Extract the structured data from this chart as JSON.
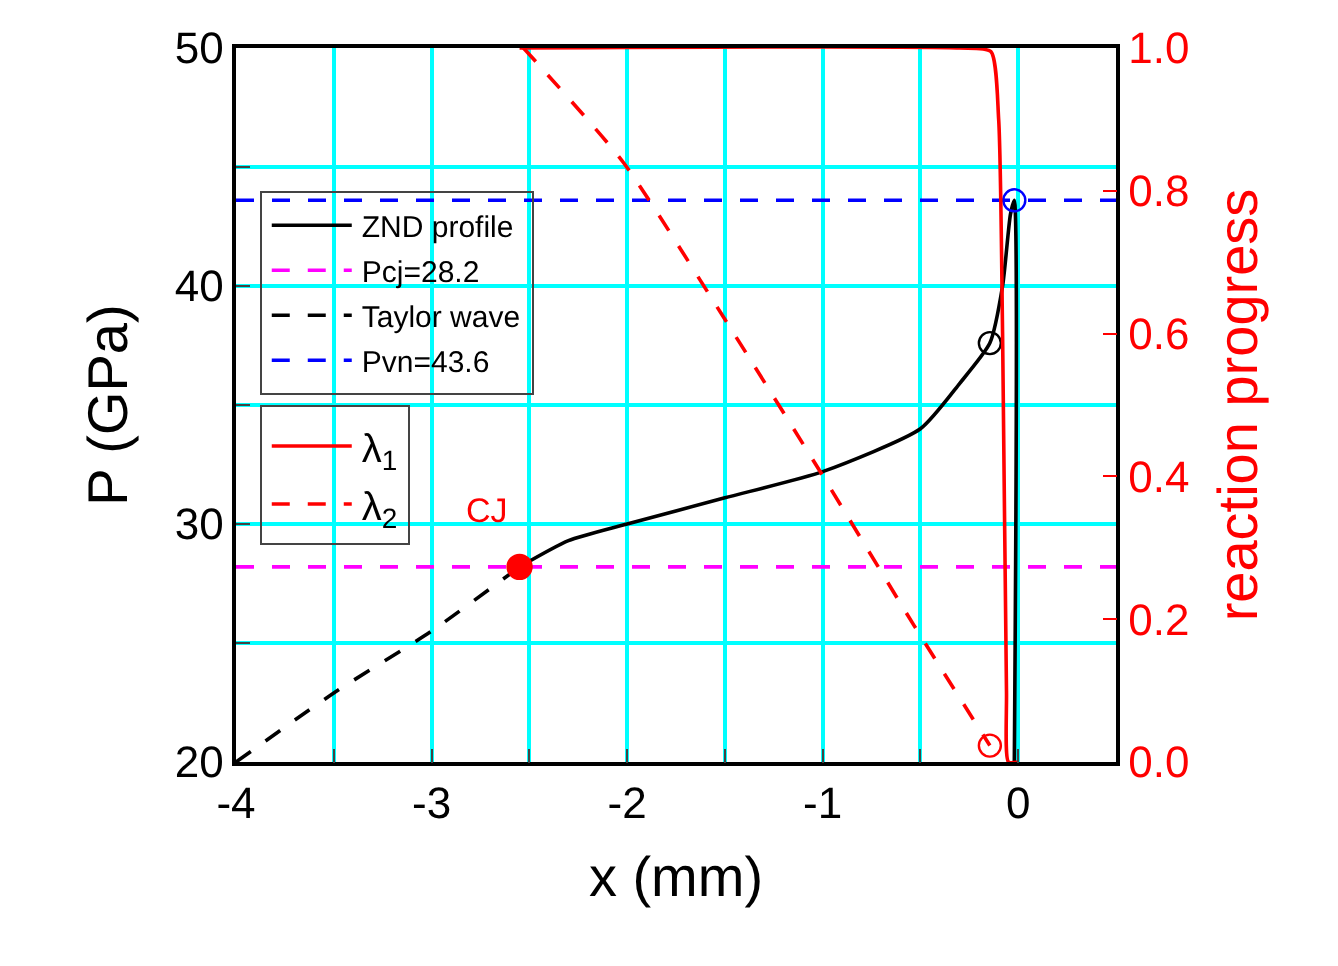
{
  "chart_data": {
    "type": "line",
    "xlabel": "x (mm)",
    "ylabel": "P (GPa)",
    "y2label": "reaction progress",
    "xlim": [
      -4,
      0.5
    ],
    "xticks": [
      -4,
      {
        "value": -3.5,
        "label": null
      },
      -3,
      {
        "value": -2.5,
        "label": null
      },
      -2,
      {
        "value": -1.5,
        "label": null
      },
      -1,
      {
        "value": -0.5,
        "label": null
      },
      0,
      {
        "value": 0.5,
        "label": null
      }
    ],
    "ylim": [
      20,
      50
    ],
    "yticks": [
      20,
      {
        "value": 25,
        "label": null
      },
      30,
      {
        "value": 35,
        "label": null
      },
      40,
      {
        "value": 45,
        "label": null
      },
      50
    ],
    "y2lim": [
      0,
      1
    ],
    "y2ticks": [
      {
        "value": 0,
        "label": "0.0"
      },
      {
        "value": 0.2,
        "label": "0.2"
      },
      {
        "value": 0.4,
        "label": "0.4"
      },
      {
        "value": 0.6,
        "label": "0.6"
      },
      {
        "value": 0.8,
        "label": "0.8"
      },
      {
        "value": 1.0,
        "label": "1.0"
      }
    ],
    "grid": true,
    "legend": "left",
    "series": [
      {
        "name": "ZND profile",
        "color": "#000000",
        "line_style": "solid",
        "x": [
          -2.55,
          -2.3,
          -2.0,
          -1.5,
          -1.0,
          -0.5,
          -0.3,
          -0.145,
          -0.08,
          -0.04,
          -0.02,
          -0.02
        ],
        "values": [
          28.2,
          29.3,
          30.0,
          31.1,
          32.2,
          34.0,
          35.9,
          37.6,
          40.0,
          43.0,
          43.6,
          20
        ]
      },
      {
        "name": "Pcj=28.2",
        "color": "#ff00ff",
        "line_style": "dashed",
        "x": [
          -4,
          0.5
        ],
        "values": [
          28.2,
          28.2
        ]
      },
      {
        "name": "Taylor wave",
        "color": "#000000",
        "line_style": "dashed",
        "x": [
          -4,
          -3.5,
          -3.0,
          -2.55
        ],
        "values": [
          20,
          22.9,
          25.5,
          28.2
        ]
      },
      {
        "name": "Pvn=43.6",
        "color": "#0000ff",
        "line_style": "dashed",
        "x": [
          -4,
          0.5
        ],
        "values": [
          43.6,
          43.6
        ]
      },
      {
        "name": "λ$_{1}$",
        "color": "#ff0000",
        "line_style": "solid",
        "axis": "y2",
        "x": [
          -2.55,
          -0.3,
          -0.14,
          -0.1,
          -0.08,
          -0.06,
          -0.05,
          0
        ],
        "values": [
          1.0,
          1.0,
          0.995,
          0.9,
          0.6,
          0.1,
          0.0,
          0.0
        ]
      },
      {
        "name": "λ$_{2}$",
        "color": "#ff0000",
        "line_style": "dashed",
        "axis": "y2",
        "x": [
          -2.53,
          -2.02,
          -1.5,
          -1.02,
          -0.53,
          -0.145
        ],
        "values": [
          1.0,
          0.84,
          0.62,
          0.41,
          0.19,
          0.023
        ]
      },
      {
        "type": "scatter",
        "marker": "circle",
        "color": "#ff0000",
        "x": [
          -2.55
        ],
        "values": [
          28.2
        ]
      },
      {
        "type": "scatter",
        "marker": "circle-open",
        "color": "#000000",
        "x": [
          -0.145
        ],
        "values": [
          37.6
        ]
      },
      {
        "type": "scatter",
        "marker": "circle-open",
        "color": "#0000ff",
        "x": [
          -0.02
        ],
        "values": [
          43.6
        ]
      },
      {
        "type": "scatter",
        "marker": "circle-open",
        "color": "#ff0000",
        "axis": "y2",
        "x": [
          -0.145
        ],
        "values": [
          0.023
        ]
      }
    ],
    "annotations": [
      {
        "text": "CJ",
        "x": -2.55,
        "y": 28.2
      }
    ]
  }
}
